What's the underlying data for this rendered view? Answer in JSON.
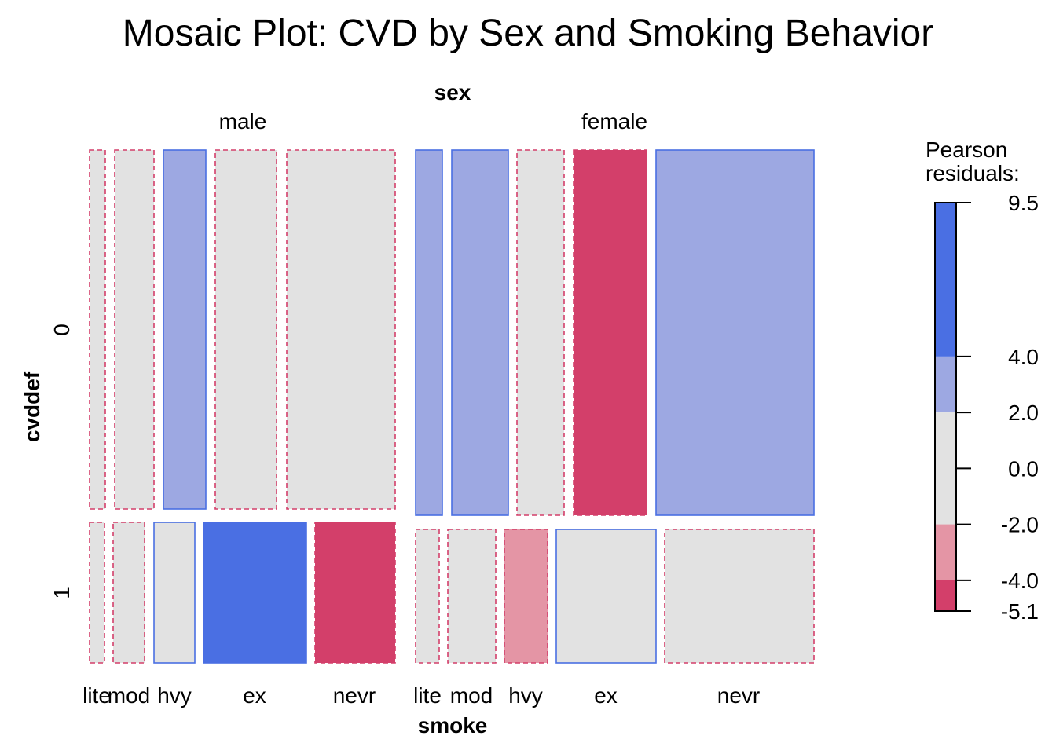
{
  "chart_data": {
    "type": "mosaic",
    "title": "Mosaic Plot: CVD by Sex and Smoking Behavior",
    "top_variable": "sex",
    "left_variable": "cvddef",
    "bottom_variable": "smoke",
    "sex_levels": [
      "male",
      "female"
    ],
    "cvd_levels": [
      "0",
      "1"
    ],
    "smoke_levels": [
      "lite",
      "mod",
      "hvy",
      "ex",
      "nevr"
    ],
    "legend": {
      "title_line1": "Pearson",
      "title_line2": "residuals:",
      "ticks": [
        "9.5",
        "4.0",
        "2.0",
        "0.0",
        "-2.0",
        "-4.0",
        "-5.1"
      ],
      "bands": [
        {
          "from": 4.0,
          "to": 9.5,
          "color": "#4A6FE3"
        },
        {
          "from": 2.0,
          "to": 4.0,
          "color": "#9DA8E2"
        },
        {
          "from": -2.0,
          "to": 2.0,
          "color": "#E2E2E2"
        },
        {
          "from": -4.0,
          "to": -2.0,
          "color": "#E495A5"
        },
        {
          "from": -5.1,
          "to": -4.0,
          "color": "#D33F6A"
        }
      ]
    },
    "colors": {
      "strong_positive": "#4A6FE3",
      "positive": "#9DA8E2",
      "neutral": "#E2E2E2",
      "negative": "#E495A5",
      "strong_negative": "#D33F6A",
      "positive_border": "#4A6FE3",
      "negative_border": "#D33F6A"
    },
    "cells": [
      {
        "sex": "male",
        "cvd": "0",
        "smoke": "lite",
        "residual": -0.6,
        "sign": "negative",
        "color": "#E2E2E2"
      },
      {
        "sex": "male",
        "cvd": "0",
        "smoke": "mod",
        "residual": -0.4,
        "sign": "negative",
        "color": "#E2E2E2"
      },
      {
        "sex": "male",
        "cvd": "0",
        "smoke": "hvy",
        "residual": 2.4,
        "sign": "positive",
        "color": "#9DA8E2"
      },
      {
        "sex": "male",
        "cvd": "0",
        "smoke": "ex",
        "residual": -0.8,
        "sign": "negative",
        "color": "#E2E2E2"
      },
      {
        "sex": "male",
        "cvd": "0",
        "smoke": "nevr",
        "residual": -1.2,
        "sign": "negative",
        "color": "#E2E2E2"
      },
      {
        "sex": "male",
        "cvd": "1",
        "smoke": "lite",
        "residual": -0.5,
        "sign": "negative",
        "color": "#E2E2E2"
      },
      {
        "sex": "male",
        "cvd": "1",
        "smoke": "mod",
        "residual": -0.7,
        "sign": "negative",
        "color": "#E2E2E2"
      },
      {
        "sex": "male",
        "cvd": "1",
        "smoke": "hvy",
        "residual": 1.1,
        "sign": "positive",
        "color": "#E2E2E2"
      },
      {
        "sex": "male",
        "cvd": "1",
        "smoke": "ex",
        "residual": 9.5,
        "sign": "positive",
        "color": "#4A6FE3"
      },
      {
        "sex": "male",
        "cvd": "1",
        "smoke": "nevr",
        "residual": -4.5,
        "sign": "negative",
        "color": "#D33F6A"
      },
      {
        "sex": "female",
        "cvd": "0",
        "smoke": "lite",
        "residual": 2.2,
        "sign": "positive",
        "color": "#9DA8E2"
      },
      {
        "sex": "female",
        "cvd": "0",
        "smoke": "mod",
        "residual": 2.6,
        "sign": "positive",
        "color": "#9DA8E2"
      },
      {
        "sex": "female",
        "cvd": "0",
        "smoke": "hvy",
        "residual": -1.0,
        "sign": "negative",
        "color": "#E2E2E2"
      },
      {
        "sex": "female",
        "cvd": "0",
        "smoke": "ex",
        "residual": -5.1,
        "sign": "negative",
        "color": "#D33F6A"
      },
      {
        "sex": "female",
        "cvd": "0",
        "smoke": "nevr",
        "residual": 3.4,
        "sign": "positive",
        "color": "#9DA8E2"
      },
      {
        "sex": "female",
        "cvd": "1",
        "smoke": "lite",
        "residual": -0.9,
        "sign": "negative",
        "color": "#E2E2E2"
      },
      {
        "sex": "female",
        "cvd": "1",
        "smoke": "mod",
        "residual": -1.1,
        "sign": "negative",
        "color": "#E2E2E2"
      },
      {
        "sex": "female",
        "cvd": "1",
        "smoke": "hvy",
        "residual": -2.5,
        "sign": "negative",
        "color": "#E495A5"
      },
      {
        "sex": "female",
        "cvd": "1",
        "smoke": "ex",
        "residual": 1.6,
        "sign": "positive",
        "color": "#E2E2E2"
      },
      {
        "sex": "female",
        "cvd": "1",
        "smoke": "nevr",
        "residual": -1.5,
        "sign": "negative",
        "color": "#E2E2E2"
      }
    ]
  }
}
